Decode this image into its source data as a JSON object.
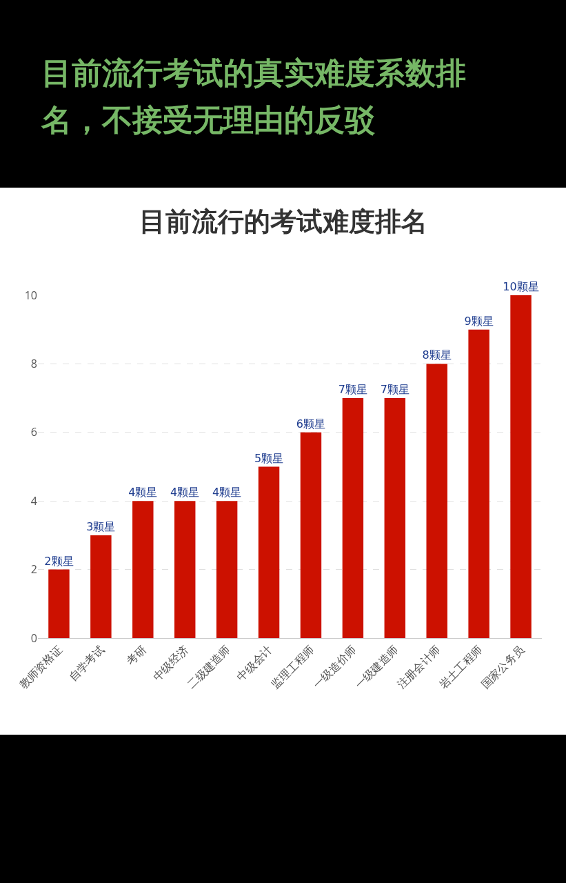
{
  "chart_data": {
    "type": "bar",
    "title": "目前流行考试的真实难度系数排名，不接受无理由的反驳",
    "subtitle": "目前流行的考试难度排名",
    "categories": [
      "教师资格证",
      "自学考试",
      "考研",
      "中级经济",
      "二级建造师",
      "中级会计",
      "监理工程师",
      "一级造价师",
      "一级建造师",
      "注册会计师",
      "岩土工程师",
      "国家公务员"
    ],
    "values": [
      2,
      3,
      4,
      4,
      4,
      5,
      6,
      7,
      7,
      8,
      9,
      10
    ],
    "value_labels": [
      "2颗星",
      "3颗星",
      "4颗星",
      "4颗星",
      "4颗星",
      "5颗星",
      "6颗星",
      "7颗星",
      "7颗星",
      "8颗星",
      "9颗星",
      "10颗星"
    ],
    "color": "#cc1100",
    "ylim": [
      0,
      10
    ],
    "yticks": [
      0,
      2,
      4,
      6,
      8,
      10
    ],
    "grid": "y"
  }
}
